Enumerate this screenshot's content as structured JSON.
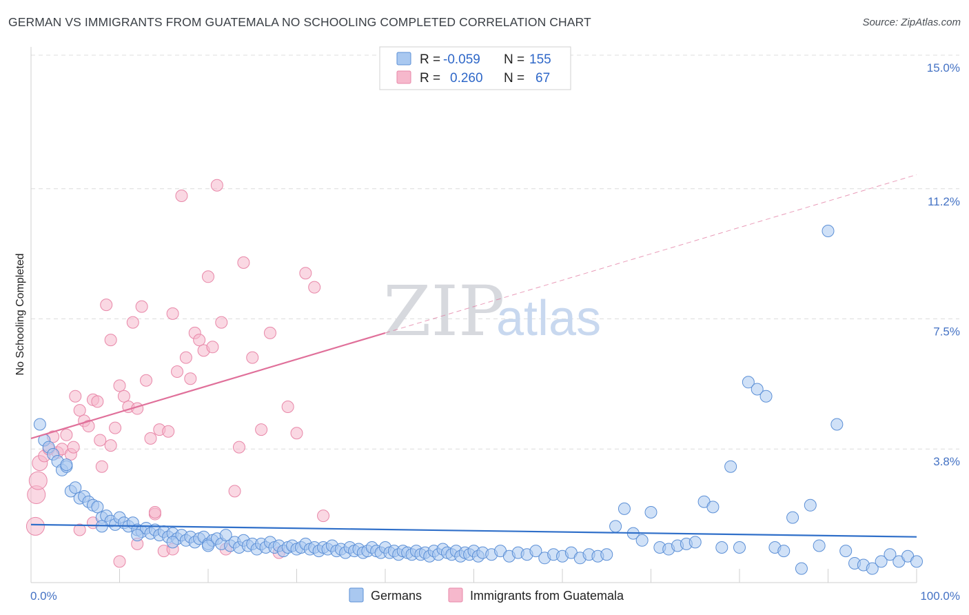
{
  "title": "GERMAN VS IMMIGRANTS FROM GUATEMALA NO SCHOOLING COMPLETED CORRELATION CHART",
  "source": "Source: ZipAtlas.com",
  "watermark": {
    "zip": "ZIP",
    "atlas": "atlas"
  },
  "colors": {
    "germans_fill": "#a9c8f0",
    "germans_stroke": "#5b8fd6",
    "germans_line": "#2f6fc9",
    "guatemala_fill": "#f6b8cc",
    "guatemala_stroke": "#e887a8",
    "guatemala_line": "#e0709a",
    "grid": "#dcdcdc",
    "axis_text": "#4472c4"
  },
  "legend": {
    "rows": [
      {
        "r_label": "R =",
        "r_value": "-0.059",
        "n_label": "N =",
        "n_value": "155"
      },
      {
        "r_label": "R =",
        "r_value": "0.260",
        "n_label": "N =",
        "n_value": "67"
      }
    ]
  },
  "bottom_legend": {
    "germans": "Germans",
    "guatemala": "Immigrants from Guatemala"
  },
  "chart_data": {
    "type": "scatter",
    "title": "GERMAN VS IMMIGRANTS FROM GUATEMALA NO SCHOOLING COMPLETED CORRELATION CHART",
    "xlabel": "",
    "ylabel": "No Schooling Completed",
    "xlim": [
      0,
      100
    ],
    "ylim": [
      0,
      15.0
    ],
    "x_tick_labels": [
      "0.0%",
      "100.0%"
    ],
    "y_ticks": [
      3.8,
      7.5,
      11.2,
      15.0
    ],
    "y_tick_labels": [
      "3.8%",
      "7.5%",
      "11.2%",
      "15.0%"
    ],
    "grid": true,
    "legend_position": "top-center",
    "series": [
      {
        "name": "Germans",
        "r": -0.059,
        "n": 155,
        "trend": {
          "x": [
            0,
            100
          ],
          "y": [
            1.65,
            1.3
          ]
        },
        "points": [
          [
            1,
            4.5
          ],
          [
            1.5,
            4.05
          ],
          [
            2,
            3.85
          ],
          [
            2.5,
            3.65
          ],
          [
            3,
            3.45
          ],
          [
            3.5,
            3.2
          ],
          [
            4,
            3.3
          ],
          [
            4.5,
            2.6
          ],
          [
            5,
            2.7
          ],
          [
            5.5,
            2.4
          ],
          [
            6,
            2.45
          ],
          [
            6.5,
            2.3
          ],
          [
            7,
            2.2
          ],
          [
            7.5,
            2.15
          ],
          [
            8,
            1.85
          ],
          [
            8.5,
            1.9
          ],
          [
            9,
            1.75
          ],
          [
            9.5,
            1.65
          ],
          [
            10,
            1.85
          ],
          [
            10.5,
            1.7
          ],
          [
            11,
            1.6
          ],
          [
            11.5,
            1.7
          ],
          [
            12,
            1.5
          ],
          [
            12.5,
            1.45
          ],
          [
            13,
            1.55
          ],
          [
            13.5,
            1.4
          ],
          [
            14,
            1.5
          ],
          [
            14.5,
            1.35
          ],
          [
            15,
            1.45
          ],
          [
            15.5,
            1.3
          ],
          [
            16,
            1.4
          ],
          [
            16.5,
            1.25
          ],
          [
            17,
            1.35
          ],
          [
            17.5,
            1.2
          ],
          [
            18,
            1.3
          ],
          [
            18.5,
            1.15
          ],
          [
            19,
            1.25
          ],
          [
            19.5,
            1.3
          ],
          [
            20,
            1.1
          ],
          [
            20.5,
            1.2
          ],
          [
            21,
            1.25
          ],
          [
            21.5,
            1.1
          ],
          [
            22,
            1.35
          ],
          [
            22.5,
            1.05
          ],
          [
            23,
            1.15
          ],
          [
            23.5,
            1.0
          ],
          [
            24,
            1.2
          ],
          [
            24.5,
            1.05
          ],
          [
            25,
            1.1
          ],
          [
            25.5,
            0.95
          ],
          [
            26,
            1.1
          ],
          [
            26.5,
            1.0
          ],
          [
            27,
            1.15
          ],
          [
            27.5,
            1.0
          ],
          [
            28,
            1.05
          ],
          [
            28.5,
            0.9
          ],
          [
            29,
            1.0
          ],
          [
            29.5,
            1.05
          ],
          [
            30,
            0.95
          ],
          [
            30.5,
            1.0
          ],
          [
            31,
            1.1
          ],
          [
            31.5,
            0.95
          ],
          [
            32,
            1.0
          ],
          [
            32.5,
            0.9
          ],
          [
            33,
            1.0
          ],
          [
            33.5,
            0.95
          ],
          [
            34,
            1.05
          ],
          [
            34.5,
            0.9
          ],
          [
            35,
            0.95
          ],
          [
            35.5,
            0.85
          ],
          [
            36,
            1.0
          ],
          [
            36.5,
            0.9
          ],
          [
            37,
            0.95
          ],
          [
            37.5,
            0.85
          ],
          [
            38,
            0.9
          ],
          [
            38.5,
            1.0
          ],
          [
            39,
            0.9
          ],
          [
            39.5,
            0.85
          ],
          [
            40,
            1.0
          ],
          [
            40.5,
            0.85
          ],
          [
            41,
            0.9
          ],
          [
            41.5,
            0.8
          ],
          [
            42,
            0.9
          ],
          [
            42.5,
            0.85
          ],
          [
            43,
            0.8
          ],
          [
            43.5,
            0.9
          ],
          [
            44,
            0.8
          ],
          [
            44.5,
            0.85
          ],
          [
            45,
            0.75
          ],
          [
            45.5,
            0.9
          ],
          [
            46,
            0.8
          ],
          [
            46.5,
            0.95
          ],
          [
            47,
            0.85
          ],
          [
            47.5,
            0.8
          ],
          [
            48,
            0.9
          ],
          [
            48.5,
            0.75
          ],
          [
            49,
            0.85
          ],
          [
            49.5,
            0.8
          ],
          [
            50,
            0.9
          ],
          [
            50.5,
            0.75
          ],
          [
            51,
            0.85
          ],
          [
            52,
            0.8
          ],
          [
            53,
            0.9
          ],
          [
            54,
            0.75
          ],
          [
            55,
            0.85
          ],
          [
            56,
            0.8
          ],
          [
            57,
            0.9
          ],
          [
            58,
            0.7
          ],
          [
            59,
            0.8
          ],
          [
            60,
            0.75
          ],
          [
            61,
            0.85
          ],
          [
            62,
            0.7
          ],
          [
            63,
            0.8
          ],
          [
            64,
            0.75
          ],
          [
            65,
            0.8
          ],
          [
            66,
            1.6
          ],
          [
            67,
            2.1
          ],
          [
            68,
            1.4
          ],
          [
            69,
            1.2
          ],
          [
            70,
            2.0
          ],
          [
            71,
            1.0
          ],
          [
            72,
            0.95
          ],
          [
            73,
            1.05
          ],
          [
            74,
            1.1
          ],
          [
            75,
            1.15
          ],
          [
            76,
            2.3
          ],
          [
            77,
            2.15
          ],
          [
            78,
            1.0
          ],
          [
            79,
            3.3
          ],
          [
            80,
            1.0
          ],
          [
            81,
            5.7
          ],
          [
            82,
            5.5
          ],
          [
            83,
            5.3
          ],
          [
            84,
            1.0
          ],
          [
            85,
            0.9
          ],
          [
            86,
            1.85
          ],
          [
            87,
            0.4
          ],
          [
            88,
            2.2
          ],
          [
            89,
            1.05
          ],
          [
            90,
            10.0
          ],
          [
            91,
            4.5
          ],
          [
            92,
            0.9
          ],
          [
            93,
            0.55
          ],
          [
            94,
            0.5
          ],
          [
            95,
            0.4
          ],
          [
            96,
            0.6
          ],
          [
            97,
            0.8
          ],
          [
            98,
            0.6
          ],
          [
            99,
            0.75
          ],
          [
            100,
            0.6
          ],
          [
            4,
            3.35
          ],
          [
            8,
            1.6
          ],
          [
            12,
            1.35
          ],
          [
            16,
            1.15
          ],
          [
            20,
            1.05
          ]
        ]
      },
      {
        "name": "Immigrants from Guatemala",
        "r": 0.26,
        "n": 67,
        "trend": {
          "x": [
            0,
            40
          ],
          "y": [
            4.1,
            7.1
          ]
        },
        "trend_extended": {
          "x": [
            40,
            100
          ],
          "y": [
            7.1,
            11.6
          ]
        },
        "points": [
          [
            0.5,
            1.6
          ],
          [
            0.6,
            2.5
          ],
          [
            0.8,
            2.9
          ],
          [
            1,
            3.4
          ],
          [
            1.5,
            3.6
          ],
          [
            2,
            3.8
          ],
          [
            2.5,
            4.15
          ],
          [
            3,
            3.7
          ],
          [
            3.5,
            3.8
          ],
          [
            4,
            4.2
          ],
          [
            4.5,
            3.65
          ],
          [
            4.8,
            3.85
          ],
          [
            5,
            5.3
          ],
          [
            5.5,
            4.9
          ],
          [
            6,
            4.6
          ],
          [
            6.5,
            4.45
          ],
          [
            7,
            5.2
          ],
          [
            7.5,
            5.15
          ],
          [
            7.8,
            4.05
          ],
          [
            8,
            3.3
          ],
          [
            8.5,
            7.9
          ],
          [
            9,
            6.9
          ],
          [
            9.5,
            4.4
          ],
          [
            10,
            5.6
          ],
          [
            10.5,
            5.3
          ],
          [
            11,
            5.0
          ],
          [
            11.5,
            7.4
          ],
          [
            12,
            4.95
          ],
          [
            12.5,
            7.85
          ],
          [
            13,
            5.75
          ],
          [
            13.5,
            4.1
          ],
          [
            14,
            1.95
          ],
          [
            14.5,
            4.35
          ],
          [
            15,
            0.9
          ],
          [
            15.5,
            4.3
          ],
          [
            16,
            7.65
          ],
          [
            16.5,
            6.0
          ],
          [
            17,
            11.0
          ],
          [
            17.5,
            6.4
          ],
          [
            18,
            5.8
          ],
          [
            18.5,
            7.1
          ],
          [
            19,
            6.9
          ],
          [
            19.5,
            6.6
          ],
          [
            20,
            8.7
          ],
          [
            20.5,
            6.7
          ],
          [
            21,
            11.3
          ],
          [
            21.5,
            7.4
          ],
          [
            22,
            0.95
          ],
          [
            23,
            2.6
          ],
          [
            23.5,
            3.85
          ],
          [
            24,
            9.1
          ],
          [
            25,
            6.4
          ],
          [
            26,
            4.35
          ],
          [
            27,
            7.1
          ],
          [
            28,
            0.85
          ],
          [
            29,
            5.0
          ],
          [
            30,
            4.25
          ],
          [
            31,
            8.8
          ],
          [
            32,
            8.4
          ],
          [
            33,
            1.9
          ],
          [
            10,
            0.6
          ],
          [
            12,
            1.1
          ],
          [
            14,
            2.0
          ],
          [
            16,
            0.95
          ],
          [
            5.5,
            1.5
          ],
          [
            7,
            1.7
          ],
          [
            9,
            3.9
          ]
        ]
      }
    ]
  }
}
